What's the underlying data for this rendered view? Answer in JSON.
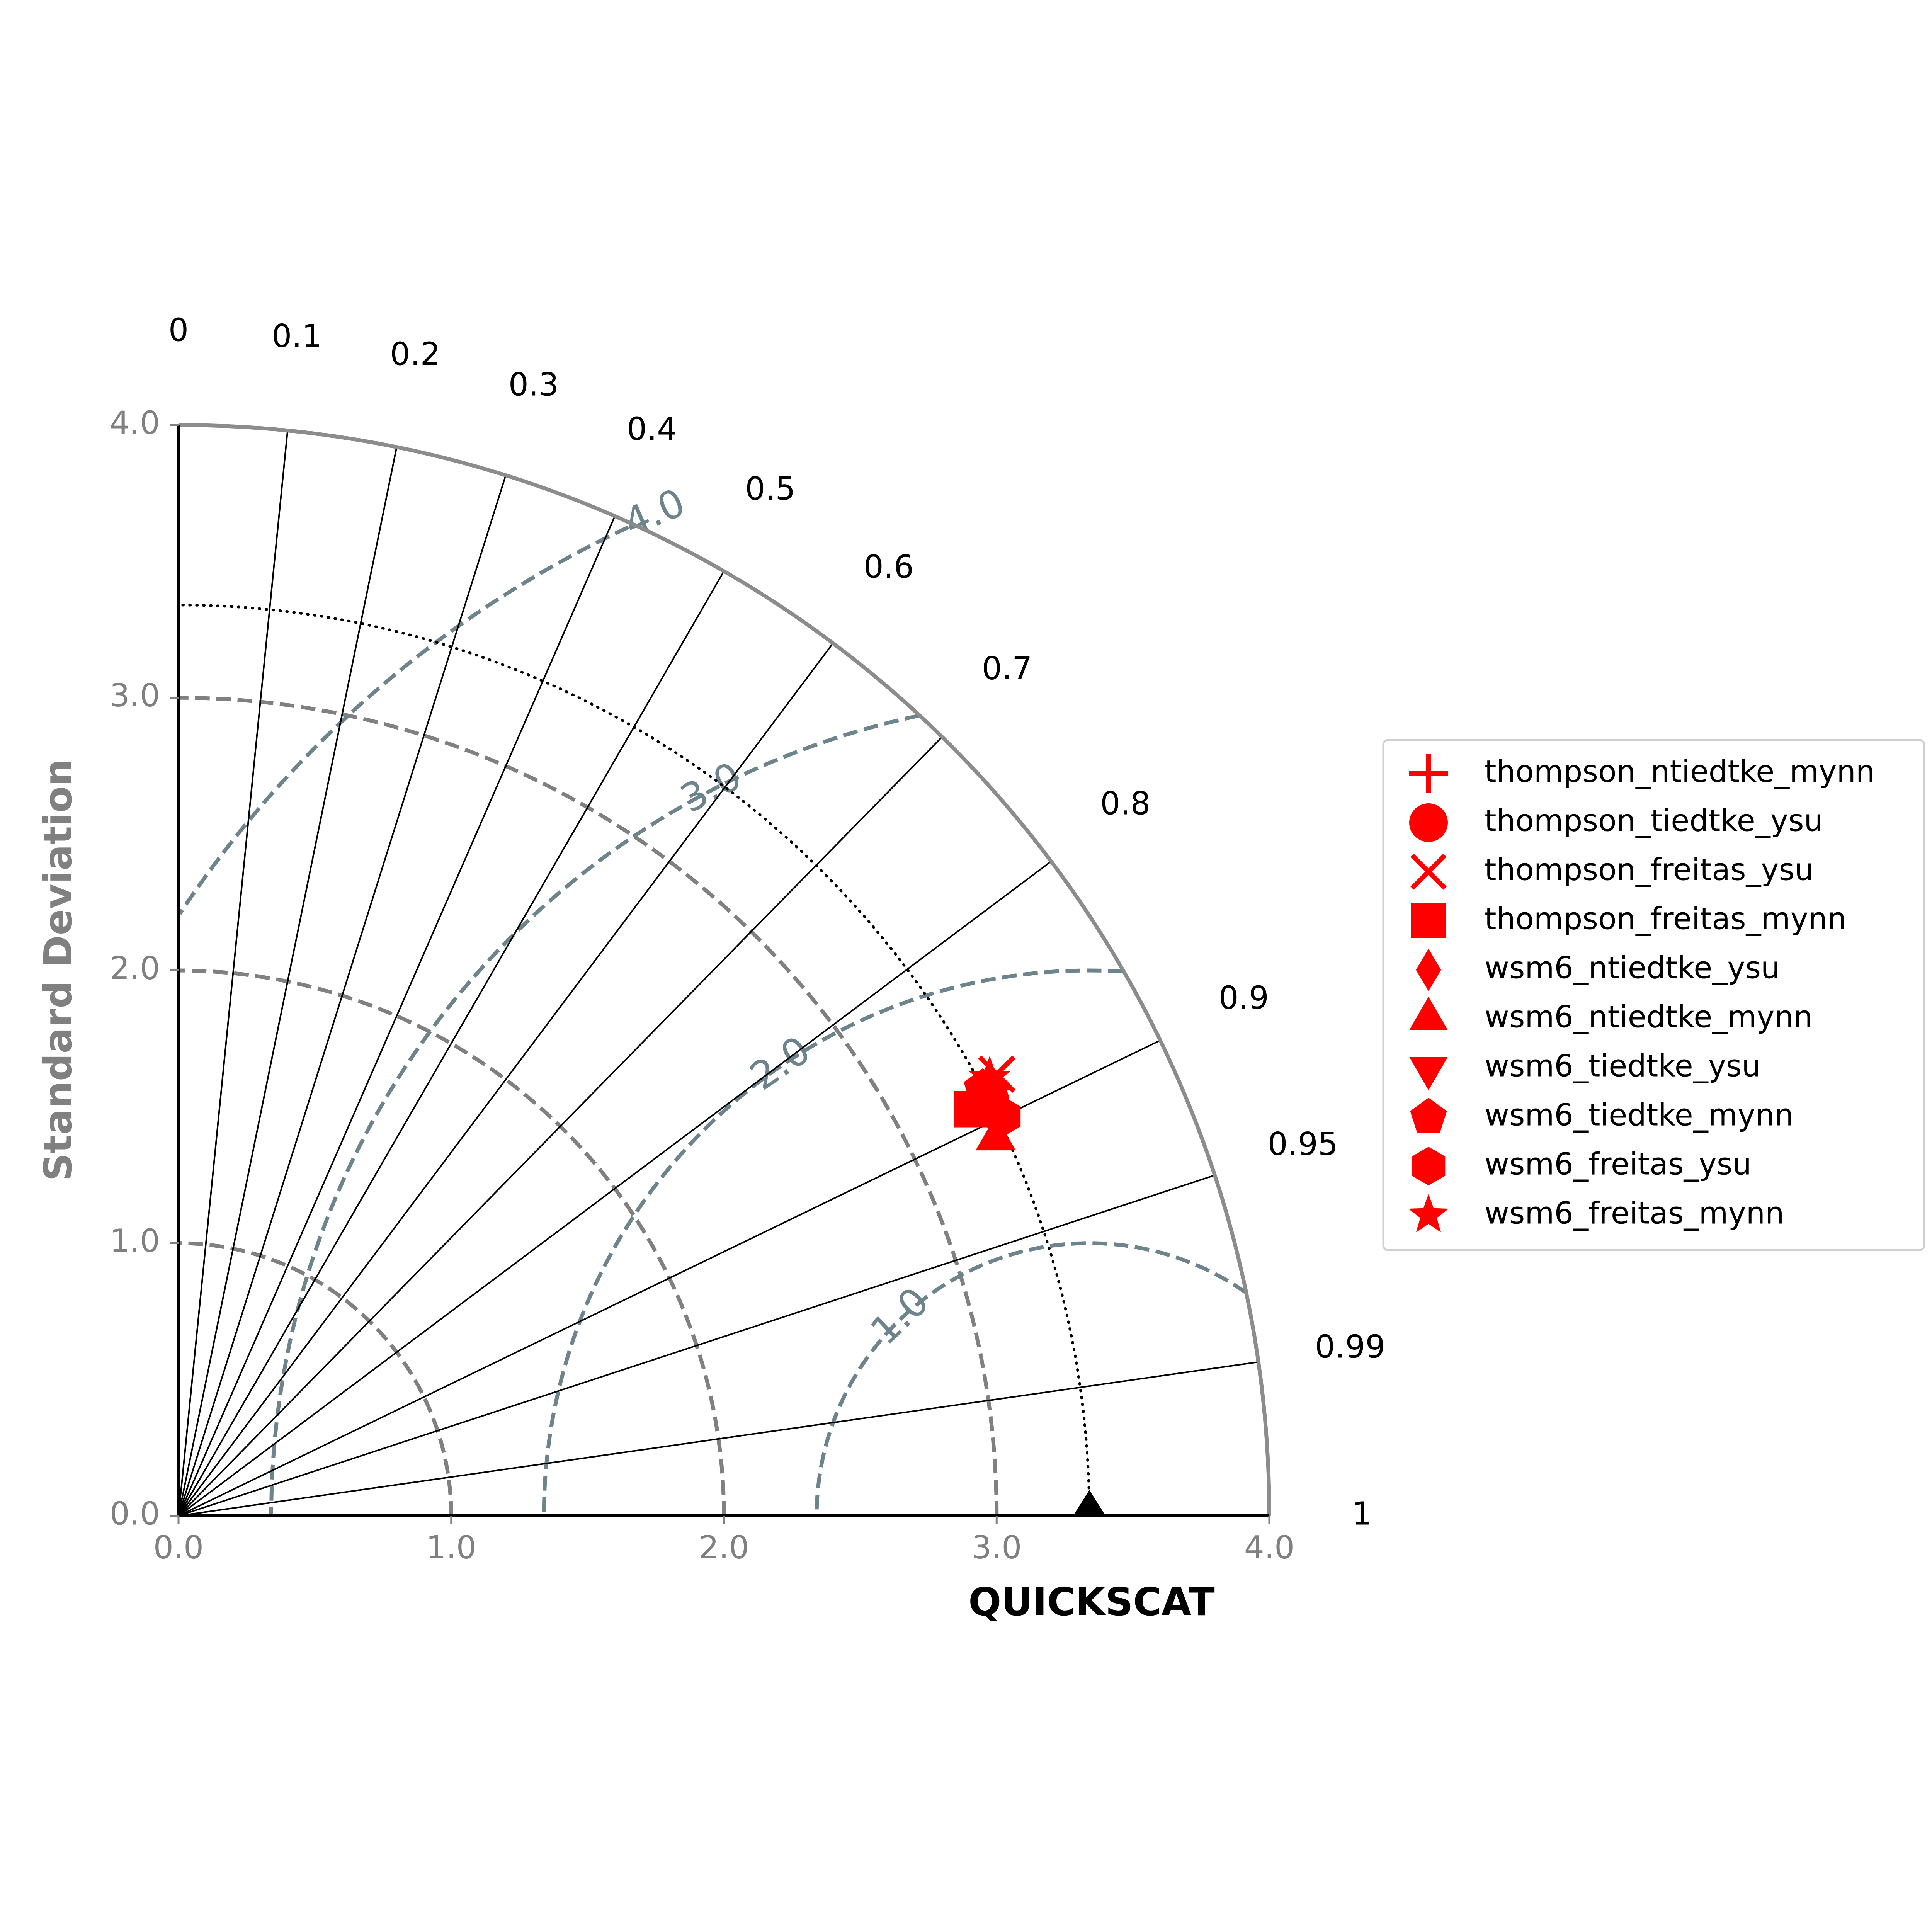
{
  "chart_data": {
    "type": "scatter",
    "subtype": "taylor_diagram",
    "xlabel": "QUICKSCAT",
    "ylabel": "Standard Deviation",
    "std_axis_range": [
      0.0,
      4.0
    ],
    "std_ticks": [
      "0.0",
      "1.0",
      "2.0",
      "3.0",
      "4.0"
    ],
    "correlation_ticks": [
      "0",
      "0.1",
      "0.2",
      "0.3",
      "0.4",
      "0.5",
      "0.6",
      "0.7",
      "0.8",
      "0.9",
      "0.95",
      "0.99",
      "1"
    ],
    "rms_contours": [
      "1.0",
      "2.0",
      "3.0",
      "4.0"
    ],
    "reference": {
      "std": 3.34,
      "correlation": 1.0,
      "marker": "triangle",
      "color": "#000000"
    },
    "series": [
      {
        "name": "thompson_ntiedtke_mynn",
        "marker": "plus",
        "std": 3.37,
        "correlation": 0.885
      },
      {
        "name": "thompson_tiedtke_ysu",
        "marker": "circle",
        "std": 3.34,
        "correlation": 0.89
      },
      {
        "name": "thompson_freitas_ysu",
        "marker": "x",
        "std": 3.41,
        "correlation": 0.88
      },
      {
        "name": "thompson_freitas_mynn",
        "marker": "square",
        "std": 3.27,
        "correlation": 0.89
      },
      {
        "name": "wsm6_ntiedtke_ysu",
        "marker": "diamond",
        "std": 3.33,
        "correlation": 0.895
      },
      {
        "name": "wsm6_ntiedtke_mynn",
        "marker": "triangle-up",
        "std": 3.3,
        "correlation": 0.908
      },
      {
        "name": "wsm6_tiedtke_ysu",
        "marker": "triangle-down",
        "std": 3.35,
        "correlation": 0.886
      },
      {
        "name": "wsm6_tiedtke_mynn",
        "marker": "pentagon",
        "std": 3.34,
        "correlation": 0.883
      },
      {
        "name": "wsm6_freitas_ysu",
        "marker": "hexagon",
        "std": 3.36,
        "correlation": 0.9
      },
      {
        "name": "wsm6_freitas_mynn",
        "marker": "star",
        "std": 3.38,
        "correlation": 0.88
      }
    ],
    "marker_color": "#ff0000",
    "legend_position": "right",
    "grid": true
  }
}
